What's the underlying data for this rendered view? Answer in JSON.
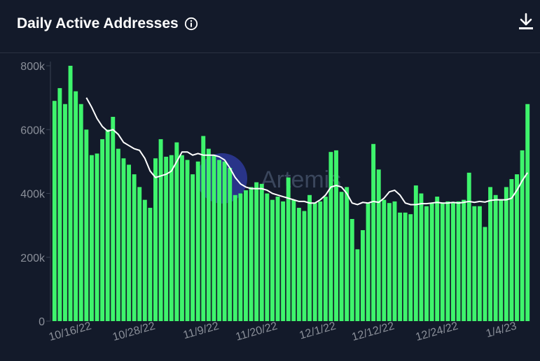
{
  "header": {
    "title": "Daily Active Addresses",
    "info_icon": "info-circle-icon",
    "download_icon": "download-icon"
  },
  "watermark": "Artemis",
  "colors": {
    "background": "#131a2a",
    "bar": "#3ef46c",
    "moving_average": "#ffffff",
    "axis_text": "#8a8f99",
    "watermark_logo": "#3b4bd8"
  },
  "chart_data": {
    "type": "bar",
    "title": "Daily Active Addresses",
    "xlabel": "",
    "ylabel": "",
    "ylim": [
      0,
      800000
    ],
    "y_ticks": [
      {
        "value": 0,
        "label": "0"
      },
      {
        "value": 200000,
        "label": "200k"
      },
      {
        "value": 400000,
        "label": "400k"
      },
      {
        "value": 600000,
        "label": "600k"
      },
      {
        "value": 800000,
        "label": "800k"
      }
    ],
    "x_ticks": [
      {
        "index": 6,
        "label": "10/16/22"
      },
      {
        "index": 18,
        "label": "10/28/22"
      },
      {
        "index": 30,
        "label": "11/9/22"
      },
      {
        "index": 41,
        "label": "11/20/22"
      },
      {
        "index": 52,
        "label": "12/1/22"
      },
      {
        "index": 63,
        "label": "12/12/22"
      },
      {
        "index": 75,
        "label": "12/24/22"
      },
      {
        "index": 86,
        "label": "1/4/23"
      }
    ],
    "grid": false,
    "values": [
      690000,
      730000,
      680000,
      800000,
      720000,
      680000,
      600000,
      520000,
      525000,
      570000,
      600000,
      640000,
      540000,
      510000,
      490000,
      460000,
      420000,
      380000,
      355000,
      510000,
      570000,
      515000,
      520000,
      560000,
      520000,
      505000,
      460000,
      500000,
      580000,
      540000,
      520000,
      505000,
      500000,
      480000,
      395000,
      400000,
      410000,
      420000,
      435000,
      430000,
      400000,
      380000,
      390000,
      375000,
      450000,
      380000,
      355000,
      345000,
      395000,
      370000,
      375000,
      390000,
      530000,
      535000,
      405000,
      420000,
      320000,
      225000,
      285000,
      370000,
      555000,
      475000,
      380000,
      370000,
      375000,
      340000,
      340000,
      335000,
      425000,
      400000,
      360000,
      370000,
      390000,
      370000,
      375000,
      370000,
      375000,
      380000,
      465000,
      360000,
      360000,
      295000,
      420000,
      395000,
      380000,
      420000,
      445000,
      460000,
      535000,
      680000
    ],
    "series": [
      {
        "values": [
          null,
          null,
          null,
          null,
          null,
          null,
          700000,
          670000,
          635000,
          610000,
          595000,
          600000,
          585000,
          560000,
          550000,
          540000,
          535000,
          510000,
          470000,
          450000,
          455000,
          460000,
          470000,
          500000,
          530000,
          530000,
          520000,
          525000,
          520000,
          520000,
          520000,
          515000,
          505000,
          480000,
          450000,
          430000,
          420000,
          415000,
          415000,
          415000,
          410000,
          400000,
          395000,
          390000,
          385000,
          380000,
          375000,
          375000,
          370000,
          370000,
          380000,
          395000,
          420000,
          425000,
          420000,
          400000,
          370000,
          365000,
          372000,
          370000,
          375000,
          372000,
          385000,
          405000,
          410000,
          395000,
          370000,
          365000,
          365000,
          368000,
          368000,
          370000,
          372000,
          370000,
          370000,
          372000,
          370000,
          372000,
          375000,
          372000,
          375000,
          373000,
          378000,
          380000,
          380000,
          380000,
          385000,
          410000,
          440000,
          465000
        ]
      }
    ]
  }
}
